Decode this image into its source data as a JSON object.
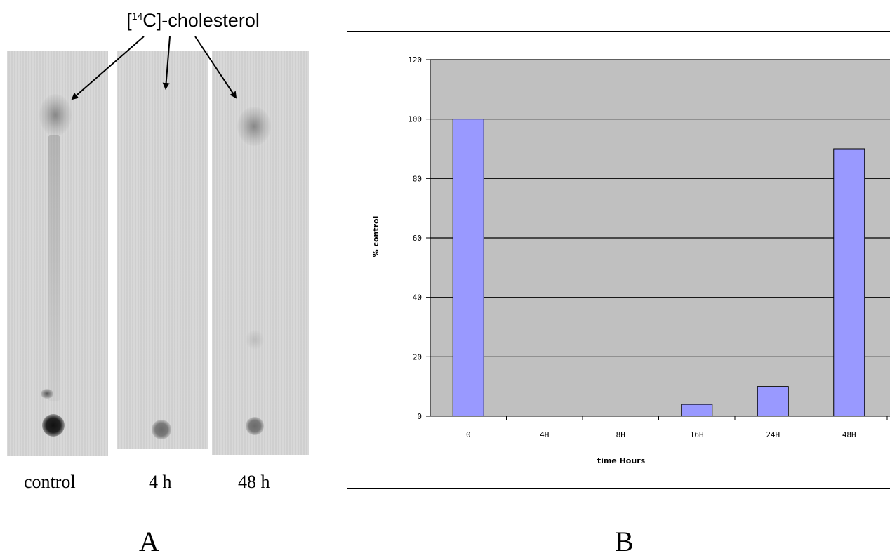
{
  "panel_a": {
    "marker_label_prefix": "[",
    "marker_label_sup": "14",
    "marker_label_rest": "C]-cholesterol",
    "lanes": [
      "control",
      "4 h",
      "48 h"
    ],
    "letter": "A"
  },
  "panel_b": {
    "letter": "B"
  },
  "chart_data": {
    "type": "bar",
    "categories": [
      "0",
      "4H",
      "8H",
      "16H",
      "24H",
      "48H"
    ],
    "values": [
      100,
      0,
      0,
      4,
      10,
      90
    ],
    "title": "",
    "xlabel": "time Hours",
    "ylabel": "% control",
    "ylim": [
      0,
      120
    ],
    "yticks": [
      0,
      20,
      40,
      60,
      80,
      100,
      120
    ],
    "grid": true,
    "legend": "none",
    "colors": {
      "bar": "#9999ff",
      "plot_area": "#c0c0c0",
      "gridline": "#000000"
    }
  }
}
